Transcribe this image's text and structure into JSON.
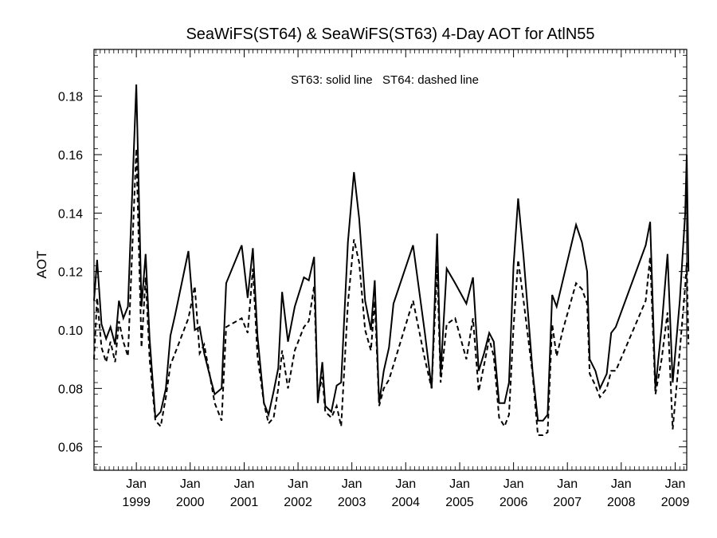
{
  "chart_data": {
    "type": "line",
    "title": "SeaWiFS(ST64) & SeaWiFS(ST63) 4-Day AOT for AtlN55",
    "ylabel": "AOT",
    "xlabel": "",
    "annotation": "ST63: solid line   ST64: dashed line",
    "ylim": [
      0.052,
      0.196
    ],
    "xlim": [
      "1998-03-20",
      "2009-03-20"
    ],
    "y_ticks": [
      0.06,
      0.08,
      0.1,
      0.12,
      0.14,
      0.16,
      0.18
    ],
    "y_tick_labels": [
      "0.06",
      "0.08",
      "0.10",
      "0.12",
      "0.14",
      "0.16",
      "0.18"
    ],
    "x_ticks": [
      "1999-01-01",
      "2000-01-01",
      "2001-01-01",
      "2002-01-01",
      "2003-01-01",
      "2004-01-01",
      "2005-01-01",
      "2006-01-01",
      "2007-01-01",
      "2008-01-01",
      "2009-01-01"
    ],
    "x_tick_month": "Jan",
    "x_tick_years": [
      "1999",
      "2000",
      "2001",
      "2002",
      "2003",
      "2004",
      "2005",
      "2006",
      "2007",
      "2008",
      "2009"
    ],
    "grid": false,
    "series": [
      {
        "name": "ST63",
        "style": "solid",
        "color": "#000000",
        "points": [
          [
            "1998-03-20",
            0.11
          ],
          [
            "1998-04-10",
            0.124
          ],
          [
            "1998-05-10",
            0.102
          ],
          [
            "1998-06-10",
            0.097
          ],
          [
            "1998-07-10",
            0.101
          ],
          [
            "1998-08-10",
            0.095
          ],
          [
            "1998-09-05",
            0.11
          ],
          [
            "1998-10-05",
            0.104
          ],
          [
            "1998-11-05",
            0.108
          ],
          [
            "1999-01-01",
            0.184
          ],
          [
            "1999-02-05",
            0.108
          ],
          [
            "1999-03-05",
            0.126
          ],
          [
            "1999-04-01",
            0.097
          ],
          [
            "1999-05-10",
            0.07
          ],
          [
            "1999-06-15",
            0.072
          ],
          [
            "1999-07-20",
            0.08
          ],
          [
            "1999-08-20",
            0.098
          ],
          [
            "1999-09-20",
            0.105
          ],
          [
            "1999-12-20",
            0.127
          ],
          [
            "2000-02-01",
            0.1
          ],
          [
            "2000-03-05",
            0.101
          ],
          [
            "2000-04-05",
            0.092
          ],
          [
            "2000-05-15",
            0.084
          ],
          [
            "2000-06-15",
            0.078
          ],
          [
            "2000-08-01",
            0.08
          ],
          [
            "2000-09-01",
            0.116
          ],
          [
            "2000-12-15",
            0.129
          ],
          [
            "2001-01-25",
            0.111
          ],
          [
            "2001-03-01",
            0.128
          ],
          [
            "2001-04-01",
            0.098
          ],
          [
            "2001-05-15",
            0.075
          ],
          [
            "2001-06-15",
            0.071
          ],
          [
            "2001-07-20",
            0.079
          ],
          [
            "2001-08-20",
            0.087
          ],
          [
            "2001-09-15",
            0.113
          ],
          [
            "2001-10-25",
            0.096
          ],
          [
            "2001-12-10",
            0.108
          ],
          [
            "2002-02-10",
            0.118
          ],
          [
            "2002-03-15",
            0.117
          ],
          [
            "2002-04-20",
            0.125
          ],
          [
            "2002-05-15",
            0.075
          ],
          [
            "2002-06-15",
            0.089
          ],
          [
            "2002-07-05",
            0.074
          ],
          [
            "2002-08-15",
            0.072
          ],
          [
            "2002-09-20",
            0.081
          ],
          [
            "2002-10-20",
            0.082
          ],
          [
            "2002-12-05",
            0.13
          ],
          [
            "2003-01-15",
            0.154
          ],
          [
            "2003-02-20",
            0.138
          ],
          [
            "2003-04-01",
            0.11
          ],
          [
            "2003-05-10",
            0.1
          ],
          [
            "2003-06-05",
            0.117
          ],
          [
            "2003-07-05",
            0.075
          ],
          [
            "2003-08-05",
            0.086
          ],
          [
            "2003-09-10",
            0.094
          ],
          [
            "2003-10-10",
            0.109
          ],
          [
            "2004-02-20",
            0.129
          ],
          [
            "2004-05-10",
            0.099
          ],
          [
            "2004-06-25",
            0.08
          ],
          [
            "2004-08-01",
            0.133
          ],
          [
            "2004-08-25",
            0.085
          ],
          [
            "2004-10-05",
            0.121
          ],
          [
            "2004-12-01",
            0.116
          ],
          [
            "2005-02-15",
            0.109
          ],
          [
            "2005-04-01",
            0.118
          ],
          [
            "2005-05-10",
            0.086
          ],
          [
            "2005-06-15",
            0.092
          ],
          [
            "2005-07-20",
            0.099
          ],
          [
            "2005-08-20",
            0.096
          ],
          [
            "2005-09-25",
            0.075
          ],
          [
            "2005-11-01",
            0.075
          ],
          [
            "2005-12-01",
            0.082
          ],
          [
            "2006-01-01",
            0.122
          ],
          [
            "2006-02-01",
            0.145
          ],
          [
            "2006-03-10",
            0.125
          ],
          [
            "2006-05-10",
            0.086
          ],
          [
            "2006-06-15",
            0.069
          ],
          [
            "2006-07-20",
            0.069
          ],
          [
            "2006-08-20",
            0.071
          ],
          [
            "2006-09-20",
            0.112
          ],
          [
            "2006-10-20",
            0.108
          ],
          [
            "2006-12-01",
            0.117
          ],
          [
            "2007-03-01",
            0.136
          ],
          [
            "2007-04-10",
            0.13
          ],
          [
            "2007-05-15",
            0.12
          ],
          [
            "2007-06-01",
            0.09
          ],
          [
            "2007-07-10",
            0.086
          ],
          [
            "2007-08-10",
            0.08
          ],
          [
            "2007-09-25",
            0.085
          ],
          [
            "2007-10-25",
            0.099
          ],
          [
            "2007-11-25",
            0.101
          ],
          [
            "2008-06-15",
            0.129
          ],
          [
            "2008-07-15",
            0.137
          ],
          [
            "2008-08-20",
            0.08
          ],
          [
            "2008-10-01",
            0.101
          ],
          [
            "2008-11-10",
            0.126
          ],
          [
            "2008-12-15",
            0.082
          ],
          [
            "2009-02-01",
            0.11
          ],
          [
            "2009-03-10",
            0.14
          ],
          [
            "2009-03-20",
            0.16
          ],
          [
            "2009-04-01",
            0.12
          ]
        ]
      },
      {
        "name": "ST64",
        "style": "dashed",
        "color": "#000000",
        "points": [
          [
            "1998-03-20",
            0.09
          ],
          [
            "1998-04-10",
            0.111
          ],
          [
            "1998-05-10",
            0.094
          ],
          [
            "1998-06-10",
            0.089
          ],
          [
            "1998-07-10",
            0.096
          ],
          [
            "1998-08-10",
            0.089
          ],
          [
            "1998-09-05",
            0.103
          ],
          [
            "1998-10-05",
            0.096
          ],
          [
            "1998-11-05",
            0.091
          ],
          [
            "1999-01-01",
            0.162
          ],
          [
            "1999-02-05",
            0.094
          ],
          [
            "1999-03-05",
            0.118
          ],
          [
            "1999-04-01",
            0.09
          ],
          [
            "1999-05-10",
            0.069
          ],
          [
            "1999-06-15",
            0.067
          ],
          [
            "1999-07-20",
            0.077
          ],
          [
            "1999-08-20",
            0.088
          ],
          [
            "1999-09-20",
            0.092
          ],
          [
            "1999-12-20",
            0.104
          ],
          [
            "2000-02-01",
            0.115
          ],
          [
            "2000-03-05",
            0.092
          ],
          [
            "2000-04-05",
            0.095
          ],
          [
            "2000-05-15",
            0.084
          ],
          [
            "2000-06-15",
            0.075
          ],
          [
            "2000-08-01",
            0.069
          ],
          [
            "2000-09-01",
            0.101
          ],
          [
            "2000-12-15",
            0.104
          ],
          [
            "2001-01-25",
            0.099
          ],
          [
            "2001-03-01",
            0.121
          ],
          [
            "2001-04-01",
            0.091
          ],
          [
            "2001-05-15",
            0.075
          ],
          [
            "2001-06-15",
            0.068
          ],
          [
            "2001-07-20",
            0.07
          ],
          [
            "2001-08-20",
            0.08
          ],
          [
            "2001-09-15",
            0.093
          ],
          [
            "2001-10-25",
            0.08
          ],
          [
            "2001-12-10",
            0.093
          ],
          [
            "2002-02-10",
            0.101
          ],
          [
            "2002-03-15",
            0.103
          ],
          [
            "2002-04-20",
            0.115
          ],
          [
            "2002-05-15",
            0.077
          ],
          [
            "2002-06-15",
            0.084
          ],
          [
            "2002-07-05",
            0.072
          ],
          [
            "2002-08-15",
            0.07
          ],
          [
            "2002-09-20",
            0.074
          ],
          [
            "2002-10-20",
            0.067
          ],
          [
            "2002-12-05",
            0.109
          ],
          [
            "2003-01-15",
            0.131
          ],
          [
            "2003-02-20",
            0.123
          ],
          [
            "2003-04-01",
            0.1
          ],
          [
            "2003-05-10",
            0.093
          ],
          [
            "2003-06-05",
            0.11
          ],
          [
            "2003-07-05",
            0.074
          ],
          [
            "2003-08-05",
            0.08
          ],
          [
            "2003-09-10",
            0.083
          ],
          [
            "2003-10-10",
            0.088
          ],
          [
            "2004-02-20",
            0.11
          ],
          [
            "2004-05-10",
            0.09
          ],
          [
            "2004-06-25",
            0.08
          ],
          [
            "2004-08-01",
            0.122
          ],
          [
            "2004-08-25",
            0.082
          ],
          [
            "2004-10-05",
            0.102
          ],
          [
            "2004-12-01",
            0.104
          ],
          [
            "2005-02-15",
            0.09
          ],
          [
            "2005-04-01",
            0.104
          ],
          [
            "2005-05-10",
            0.079
          ],
          [
            "2005-06-15",
            0.088
          ],
          [
            "2005-07-20",
            0.097
          ],
          [
            "2005-08-20",
            0.091
          ],
          [
            "2005-09-25",
            0.07
          ],
          [
            "2005-11-01",
            0.067
          ],
          [
            "2005-12-01",
            0.071
          ],
          [
            "2006-01-01",
            0.101
          ],
          [
            "2006-02-01",
            0.124
          ],
          [
            "2006-03-10",
            0.11
          ],
          [
            "2006-05-10",
            0.085
          ],
          [
            "2006-06-15",
            0.064
          ],
          [
            "2006-07-20",
            0.064
          ],
          [
            "2006-08-20",
            0.065
          ],
          [
            "2006-09-20",
            0.102
          ],
          [
            "2006-10-20",
            0.091
          ],
          [
            "2006-12-01",
            0.1
          ],
          [
            "2007-03-01",
            0.116
          ],
          [
            "2007-04-10",
            0.114
          ],
          [
            "2007-05-15",
            0.109
          ],
          [
            "2007-06-01",
            0.085
          ],
          [
            "2007-07-10",
            0.081
          ],
          [
            "2007-08-10",
            0.077
          ],
          [
            "2007-09-25",
            0.08
          ],
          [
            "2007-10-25",
            0.086
          ],
          [
            "2007-11-25",
            0.086
          ],
          [
            "2008-06-15",
            0.11
          ],
          [
            "2008-07-15",
            0.125
          ],
          [
            "2008-08-20",
            0.078
          ],
          [
            "2008-10-01",
            0.09
          ],
          [
            "2008-11-10",
            0.106
          ],
          [
            "2008-12-15",
            0.066
          ],
          [
            "2009-02-01",
            0.093
          ],
          [
            "2009-03-10",
            0.115
          ],
          [
            "2009-03-20",
            0.123
          ],
          [
            "2009-04-01",
            0.095
          ]
        ]
      }
    ]
  }
}
